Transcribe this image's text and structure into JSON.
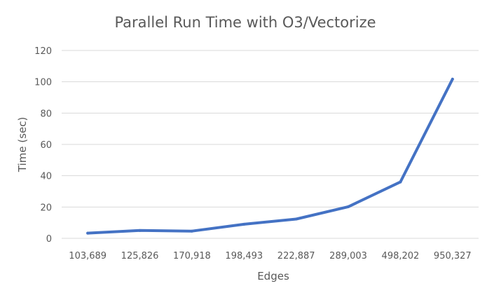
{
  "chart_data": {
    "type": "line",
    "title": "Parallel Run Time with O3/Vectorize",
    "xlabel": "Edges",
    "ylabel": "Time (sec)",
    "categories": [
      "103,689",
      "125,826",
      "170,918",
      "198,493",
      "222,887",
      "289,003",
      "498,202",
      "950,327"
    ],
    "series": [
      {
        "values": [
          3.3,
          5.0,
          4.6,
          9.0,
          12.3,
          20.2,
          36.0,
          101.7
        ],
        "color": "#4472c4"
      }
    ],
    "ylim": [
      0,
      120
    ],
    "yticks": [
      "0",
      "20",
      "40",
      "60",
      "80",
      "100",
      "120"
    ],
    "grid": true,
    "legend": "none"
  }
}
